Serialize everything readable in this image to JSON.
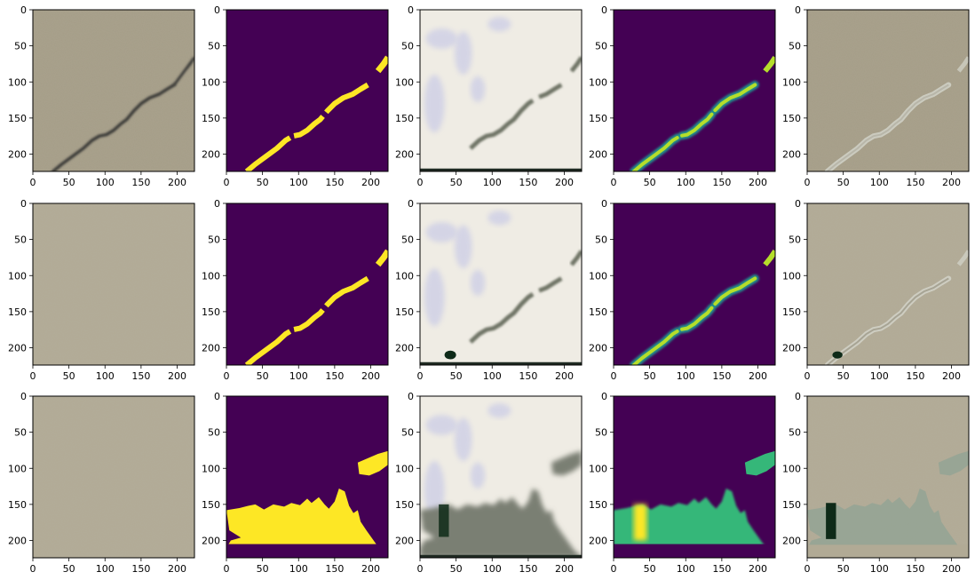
{
  "figure": {
    "rows": 3,
    "cols": 5,
    "ticks": {
      "x": [
        "0",
        "50",
        "100",
        "150",
        "200"
      ],
      "y": [
        "0",
        "50",
        "100",
        "150",
        "200"
      ],
      "x_values": [
        0,
        50,
        100,
        150,
        200
      ],
      "y_values": [
        0,
        50,
        100,
        150,
        200
      ],
      "range": [
        0,
        224
      ]
    },
    "colors": {
      "concrete": "#a59d87",
      "concrete_light": "#b1aa95",
      "mask_bg": "#440154",
      "mask_fg": "#fde725",
      "heat_mid": "#35b779",
      "heat_edge": "#21918c",
      "recon_bg": "#efece4",
      "recon_dark": "#6f7466",
      "overlay_line": "#d4d6cc",
      "dark_green": "#0e2a18"
    },
    "panels": [
      {
        "kind": "photo",
        "row": 0
      },
      {
        "kind": "mask",
        "row": 0
      },
      {
        "kind": "recon",
        "row": 0
      },
      {
        "kind": "heat",
        "row": 0
      },
      {
        "kind": "overlay",
        "row": 0
      },
      {
        "kind": "photo",
        "row": 1
      },
      {
        "kind": "mask",
        "row": 1
      },
      {
        "kind": "recon",
        "row": 1
      },
      {
        "kind": "heat",
        "row": 1
      },
      {
        "kind": "overlay",
        "row": 1
      },
      {
        "kind": "photo",
        "row": 2
      },
      {
        "kind": "mask",
        "row": 2
      },
      {
        "kind": "recon",
        "row": 2
      },
      {
        "kind": "heat",
        "row": 2
      },
      {
        "kind": "overlay",
        "row": 2
      }
    ]
  }
}
